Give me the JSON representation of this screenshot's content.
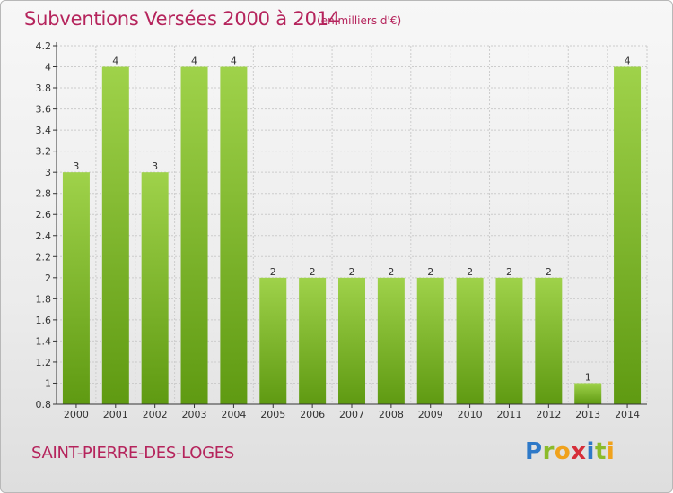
{
  "header": {
    "title": "Subventions Versées 2000 à 2014",
    "unit": "(en milliers d'€)"
  },
  "footer": {
    "commune": "SAINT-PIERRE-DES-LOGES",
    "logo": [
      "P",
      "r",
      "o",
      "x",
      "i",
      "t",
      "i"
    ]
  },
  "colors": {
    "title": "#b5245c",
    "bar_light": "#9fd24a",
    "bar_dark": "#5f9a12",
    "grid": "#cccccc",
    "axis": "#333333"
  },
  "chart_data": {
    "type": "bar",
    "categories": [
      "2000",
      "2001",
      "2002",
      "2003",
      "2004",
      "2005",
      "2006",
      "2007",
      "2008",
      "2009",
      "2010",
      "2011",
      "2012",
      "2013",
      "2014"
    ],
    "values": [
      3,
      4,
      3,
      4,
      4,
      2,
      2,
      2,
      2,
      2,
      2,
      2,
      2,
      1,
      4
    ],
    "data_labels": [
      "3",
      "4",
      "3",
      "4",
      "4",
      "2",
      "2",
      "2",
      "2",
      "2",
      "2",
      "2",
      "2",
      "1",
      "4"
    ],
    "title": "Subventions Versées 2000 à 2014",
    "xlabel": "",
    "ylabel": "",
    "ylim": [
      0.8,
      4.2
    ],
    "yticks": [
      0.8,
      1,
      1.2,
      1.4,
      1.6,
      1.8,
      2,
      2.2,
      2.4,
      2.6,
      2.8,
      3,
      3.2,
      3.4,
      3.6,
      3.8,
      4,
      4.2
    ],
    "ytick_labels": [
      "0.8",
      "1",
      "1.2",
      "1.4",
      "1.6",
      "1.8",
      "2",
      "2.2",
      "2.4",
      "2.6",
      "2.8",
      "3",
      "3.2",
      "3.4",
      "3.6",
      "3.8",
      "4",
      "4.2"
    ],
    "grid": true,
    "legend": "none"
  }
}
